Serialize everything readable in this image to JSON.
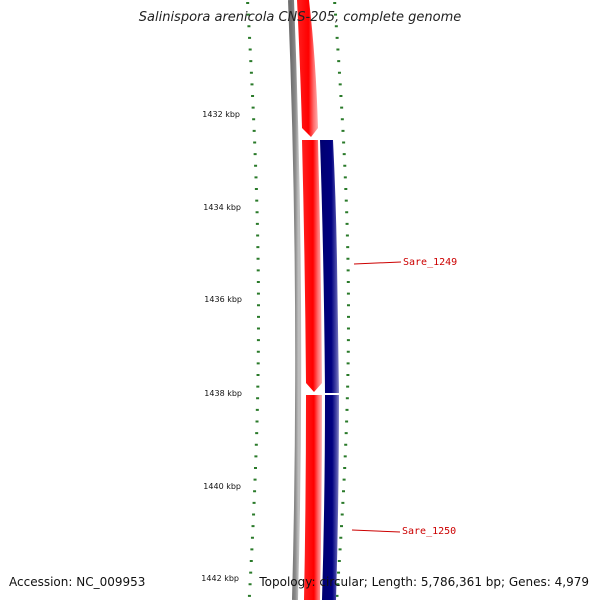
{
  "title": "Salinispora arenicola CNS-205, complete genome",
  "ruler": {
    "ticks": [
      {
        "label": "1432 kbp",
        "kbp": 1432
      },
      {
        "label": "1434 kbp",
        "kbp": 1434
      },
      {
        "label": "1436 kbp",
        "kbp": 1436
      },
      {
        "label": "1438 kbp",
        "kbp": 1438
      },
      {
        "label": "1440 kbp",
        "kbp": 1440
      },
      {
        "label": "1442 kbp",
        "kbp": 1442
      }
    ]
  },
  "genes": [
    {
      "name": "Sare_1249"
    },
    {
      "name": "Sare_1250"
    }
  ],
  "colors": {
    "forward_strand": "#ff0000",
    "reverse_strand": "#000080",
    "backbone": "#808080",
    "ticks": "#2a7a2a",
    "gene_label": "#cc0000"
  },
  "footer": {
    "accession": "Accession: NC_009953",
    "info": "Topology: circular; Length: 5,786,361 bp; Genes: 4,979"
  }
}
